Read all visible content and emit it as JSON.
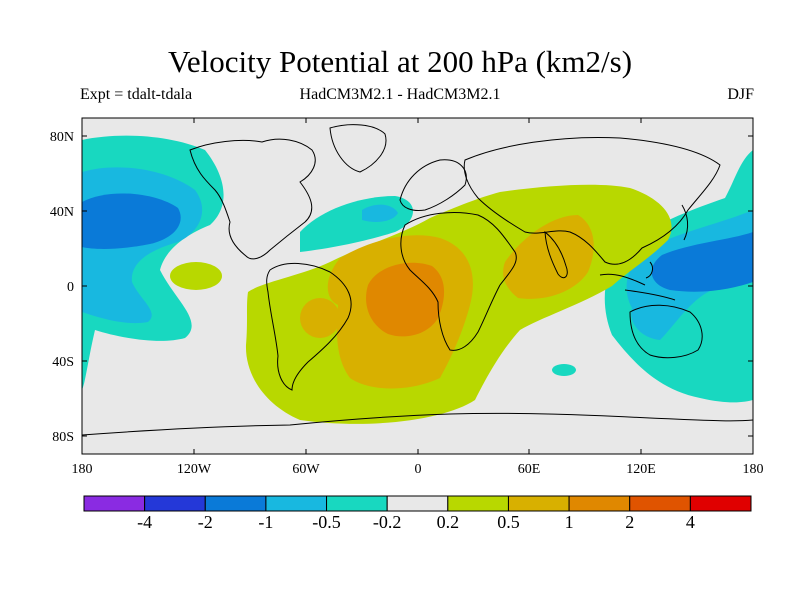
{
  "title": "Velocity Potential at 200 hPa (km2/s)",
  "subtitle_left": "Expt = tdalt-tdala",
  "subtitle_center": "HadCM3M2.1 - HadCM3M2.1",
  "subtitle_right": "DJF",
  "map": {
    "lon_labels": [
      "180",
      "120W",
      "60W",
      "0",
      "60E",
      "120E",
      "180"
    ],
    "lat_labels": [
      "80N",
      "40N",
      "0",
      "40S",
      "80S"
    ],
    "background_color": "#e8e8e8",
    "coastline_color": "#000000"
  },
  "colorbar": {
    "colors": [
      "#8a2be2",
      "#2438d8",
      "#0a7ad8",
      "#18b8e0",
      "#18d8c0",
      "#e8e8e8",
      "#b8d800",
      "#d8b000",
      "#e08800",
      "#e05400",
      "#e00000"
    ],
    "labels": [
      "-4",
      "-2",
      "-1",
      "-0.5",
      "-0.2",
      "0.2",
      "0.5",
      "1",
      "2",
      "4"
    ]
  }
}
